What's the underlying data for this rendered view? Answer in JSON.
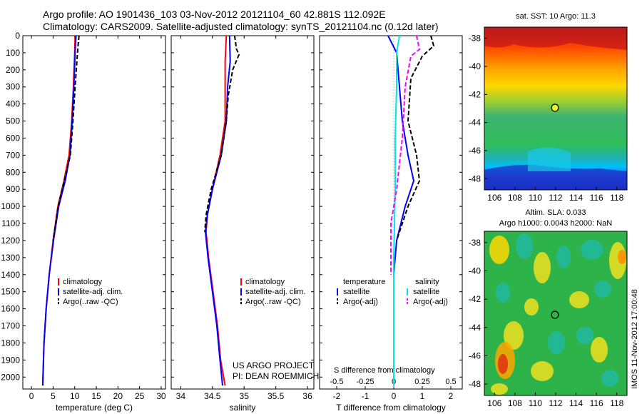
{
  "header": {
    "line1": "Argo profile: AO 1901436_103 03-Nov-2012 20121104_60 42.881S 112.092E",
    "line2": "Climatology: CARS2009. Satellite-adjusted climatology: synTS_20121104.nc (0.12d later)"
  },
  "credit": {
    "project": "US ARGO PROJECT",
    "pi": "PI: DEAN ROEMMICH",
    "stamp": "IMOS 11-Nov-2012 17:00:48"
  },
  "colors": {
    "climatology": "#ff0000",
    "satellite": "#0000ff",
    "argo": "#000000",
    "salinity_sat": "#00e5ee",
    "salinity_argo": "#ff00ff"
  },
  "chart_data": [
    {
      "type": "line",
      "name": "temperature-panel",
      "xlabel": "temperature (deg C)",
      "xlim": [
        -2,
        31
      ],
      "ylim": [
        2070,
        0
      ],
      "xticks": [
        0,
        5,
        10,
        15,
        20,
        25,
        30
      ],
      "yticks": [
        0,
        100,
        200,
        300,
        400,
        500,
        600,
        700,
        800,
        900,
        1000,
        1100,
        1200,
        1300,
        1400,
        1500,
        1600,
        1700,
        1800,
        1900,
        2000
      ],
      "legend": [
        "climatology",
        "satellite-adj. clim.",
        "Argo(..raw -QC)"
      ],
      "series": [
        {
          "name": "climatology",
          "style": "solid",
          "color": "#ff0000",
          "points": [
            [
              10.1,
              0
            ],
            [
              10.0,
              100
            ],
            [
              9.7,
              300
            ],
            [
              9.3,
              500
            ],
            [
              8.7,
              700
            ],
            [
              7.5,
              850
            ],
            [
              6.1,
              1000
            ],
            [
              5.0,
              1200
            ],
            [
              4.1,
              1400
            ],
            [
              3.4,
              1600
            ],
            [
              2.9,
              1800
            ],
            [
              2.6,
              2050
            ]
          ]
        },
        {
          "name": "satellite-adj. clim.",
          "style": "solid",
          "color": "#0000ff",
          "points": [
            [
              10.3,
              0
            ],
            [
              10.1,
              100
            ],
            [
              9.8,
              300
            ],
            [
              9.4,
              500
            ],
            [
              8.9,
              700
            ],
            [
              7.8,
              850
            ],
            [
              6.3,
              1000
            ],
            [
              5.1,
              1200
            ],
            [
              4.1,
              1400
            ],
            [
              3.4,
              1600
            ],
            [
              2.9,
              1800
            ],
            [
              2.6,
              2050
            ]
          ]
        },
        {
          "name": "Argo(..raw -QC)",
          "style": "dashed",
          "color": "#000000",
          "points": [
            [
              11.0,
              0
            ],
            [
              10.8,
              50
            ],
            [
              10.5,
              150
            ],
            [
              10.1,
              300
            ],
            [
              9.6,
              500
            ],
            [
              9.0,
              700
            ],
            [
              7.6,
              850
            ],
            [
              6.2,
              1000
            ],
            [
              5.0,
              1200
            ]
          ]
        }
      ]
    },
    {
      "type": "line",
      "name": "salinity-panel",
      "xlabel": "salinity",
      "xlim": [
        33.85,
        36.1
      ],
      "ylim": [
        2070,
        0
      ],
      "xticks": [
        34,
        34.5,
        35,
        35.5,
        36
      ],
      "legend": [
        "climatology",
        "satellite-adj. clim.",
        "Argo(..raw -QC)"
      ],
      "series": [
        {
          "name": "climatology",
          "style": "solid",
          "color": "#ff0000",
          "points": [
            [
              34.72,
              0
            ],
            [
              34.7,
              150
            ],
            [
              34.7,
              300
            ],
            [
              34.7,
              500
            ],
            [
              34.62,
              700
            ],
            [
              34.5,
              900
            ],
            [
              34.42,
              1050
            ],
            [
              34.4,
              1150
            ],
            [
              34.44,
              1300
            ],
            [
              34.51,
              1500
            ],
            [
              34.58,
              1700
            ],
            [
              34.63,
              1900
            ],
            [
              34.7,
              2050
            ]
          ]
        },
        {
          "name": "satellite-adj. clim.",
          "style": "solid",
          "color": "#0000ff",
          "points": [
            [
              34.77,
              0
            ],
            [
              34.78,
              150
            ],
            [
              34.74,
              300
            ],
            [
              34.72,
              500
            ],
            [
              34.64,
              700
            ],
            [
              34.5,
              900
            ],
            [
              34.42,
              1050
            ],
            [
              34.39,
              1150
            ],
            [
              34.43,
              1300
            ],
            [
              34.5,
              1500
            ],
            [
              34.57,
              1700
            ],
            [
              34.62,
              1900
            ],
            [
              34.66,
              2050
            ]
          ]
        },
        {
          "name": "Argo(..raw -QC)",
          "style": "dashed",
          "color": "#000000",
          "points": [
            [
              34.85,
              0
            ],
            [
              34.88,
              80
            ],
            [
              34.92,
              110
            ],
            [
              34.82,
              200
            ],
            [
              34.75,
              350
            ],
            [
              34.72,
              500
            ],
            [
              34.64,
              700
            ],
            [
              34.48,
              900
            ],
            [
              34.4,
              1050
            ],
            [
              34.38,
              1150
            ]
          ]
        }
      ]
    },
    {
      "type": "line",
      "name": "difference-panel",
      "xlabel": "T difference from climatology",
      "xlabel_top": "S difference from climatology",
      "xlim": [
        -2.6,
        2.4
      ],
      "ylim": [
        2070,
        0
      ],
      "xticks": [
        "-2",
        "-1",
        "0",
        "1",
        "2"
      ],
      "xticks_s": [
        "-0.5",
        "-0.25",
        "0",
        "0.25",
        "0.5"
      ],
      "legend": [
        "temperature",
        "satellite",
        "Argo(-adj)",
        "salinity",
        "satellite",
        "Argo(-adj)"
      ],
      "series": [
        {
          "name": "temperature satellite",
          "style": "solid",
          "color": "#0000ff",
          "points": [
            [
              -0.2,
              0
            ],
            [
              0.1,
              100
            ],
            [
              0.2,
              300
            ],
            [
              0.3,
              500
            ],
            [
              0.5,
              700
            ],
            [
              0.7,
              850
            ],
            [
              0.4,
              1000
            ],
            [
              0.1,
              1200
            ],
            [
              0,
              1400
            ],
            [
              0,
              2050
            ]
          ]
        },
        {
          "name": "temperature Argo(-adj)",
          "style": "dashed",
          "color": "#000000",
          "points": [
            [
              1.3,
              0
            ],
            [
              1.4,
              60
            ],
            [
              1.0,
              120
            ],
            [
              0.6,
              250
            ],
            [
              0.5,
              500
            ],
            [
              0.8,
              700
            ],
            [
              0.9,
              850
            ],
            [
              0.5,
              1000
            ],
            [
              0.1,
              1200
            ]
          ]
        },
        {
          "name": "salinity satellite",
          "style": "solid",
          "color": "#00e5ee",
          "points": [
            [
              0.2,
              0
            ],
            [
              0.1,
              100
            ],
            [
              0.1,
              300
            ],
            [
              0.05,
              600
            ],
            [
              0.05,
              900
            ],
            [
              0,
              1300
            ],
            [
              0,
              2050
            ]
          ]
        },
        {
          "name": "salinity Argo(-adj)",
          "style": "dashed",
          "color": "#ff00ff",
          "points": [
            [
              0.8,
              0
            ],
            [
              0.9,
              80
            ],
            [
              0.6,
              120
            ],
            [
              0.4,
              300
            ],
            [
              0.3,
              600
            ],
            [
              0.1,
              900
            ],
            [
              -0.1,
              1100
            ],
            [
              -0.1,
              1400
            ]
          ]
        }
      ]
    },
    {
      "type": "heatmap",
      "name": "sst-map",
      "title": "sat. SST: 10 Argo: 11.3",
      "xticks": [
        106,
        108,
        110,
        112,
        114,
        116,
        118
      ],
      "yticks": [
        -38,
        -40,
        -42,
        -44,
        -46,
        -48
      ],
      "xlim": [
        105,
        119
      ],
      "ylim": [
        -48.8,
        -37.2
      ],
      "argo_position": [
        112.09,
        -42.88
      ]
    },
    {
      "type": "heatmap",
      "name": "sla-map",
      "title": "Altim. SLA: 0.033",
      "subtitle": "Argo h1000: 0.0043 h2000: NaN",
      "xticks": [
        106,
        108,
        110,
        112,
        114,
        116,
        118
      ],
      "yticks": [
        -38,
        -40,
        -42,
        -44,
        -46,
        -48
      ],
      "xlim": [
        105,
        119
      ],
      "ylim": [
        -48.8,
        -37.2
      ],
      "argo_position": [
        112.09,
        -42.88
      ]
    }
  ]
}
